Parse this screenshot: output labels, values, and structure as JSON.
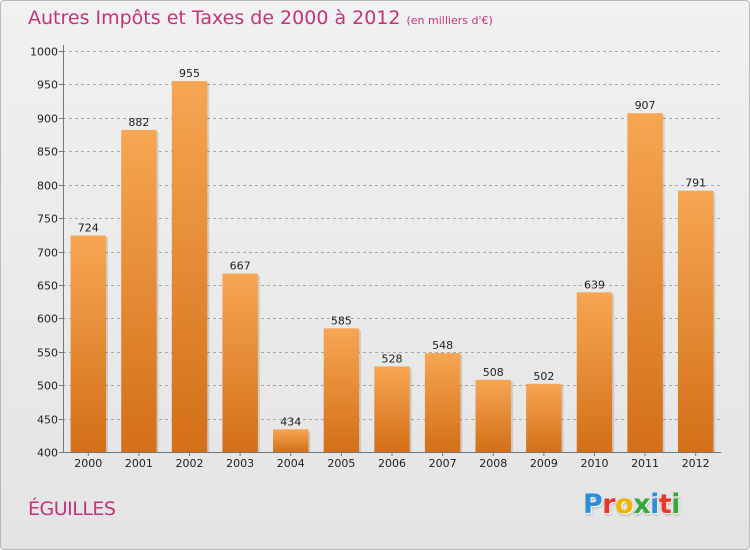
{
  "title": "Autres Impôts et Taxes de 2000 à 2012",
  "unit_note": "(en milliers d'€)",
  "city": "ÉGUILLES",
  "logo": {
    "letters": [
      "P",
      "r",
      "o",
      "x",
      "i",
      "t",
      "i"
    ],
    "colors": [
      "#2c8fd6",
      "#e8372c",
      "#f3b400",
      "#39a83a",
      "#2c8fd6",
      "#e8372c",
      "#39a83a"
    ]
  },
  "colors": {
    "accent": "#c0357a",
    "bar_light": "#f7a652",
    "bar_dark": "#d36f18",
    "grid": "#a9a9a9"
  },
  "chart_data": {
    "type": "bar",
    "title": "Autres Impôts et Taxes de 2000 à 2012",
    "subtitle": "(en milliers d'€)",
    "categories": [
      "2000",
      "2001",
      "2002",
      "2003",
      "2004",
      "2005",
      "2006",
      "2007",
      "2008",
      "2009",
      "2010",
      "2011",
      "2012"
    ],
    "values": [
      724,
      882,
      955,
      667,
      434,
      585,
      528,
      548,
      508,
      502,
      639,
      907,
      791
    ],
    "ylim": [
      400,
      1000
    ],
    "yticks": [
      400,
      450,
      500,
      550,
      600,
      650,
      700,
      750,
      800,
      850,
      900,
      950,
      1000
    ],
    "grid": true,
    "grid_style": "dashed horizontal",
    "data_labels": true
  }
}
